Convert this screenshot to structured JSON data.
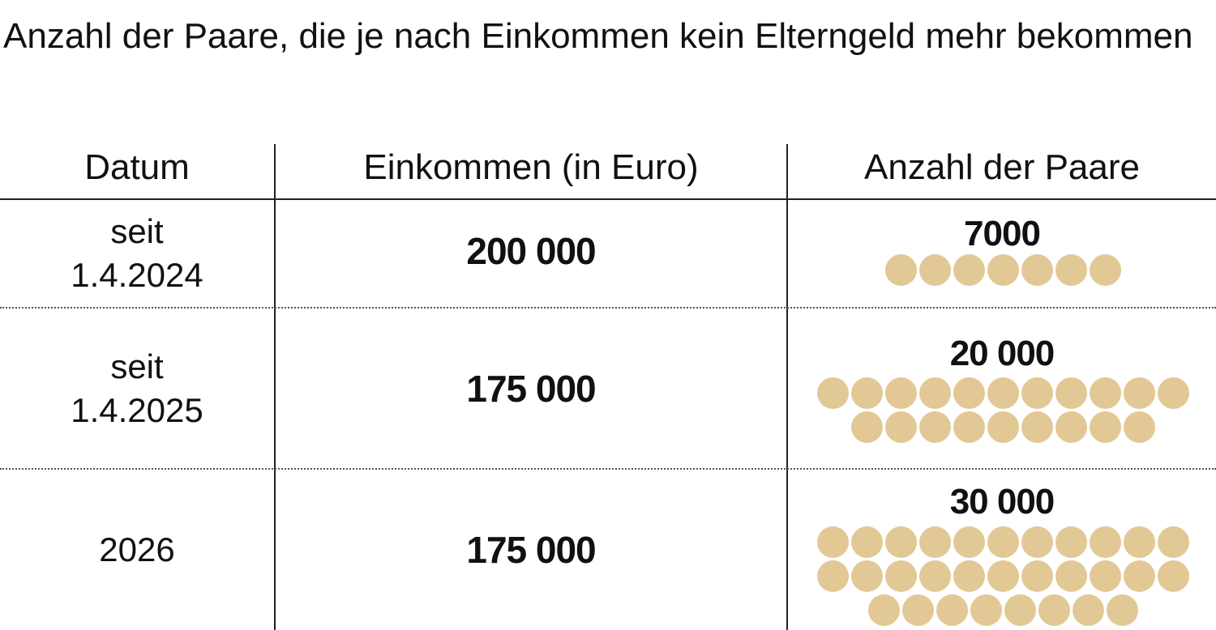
{
  "title": "Anzahl der Paare, die je nach Einkommen kein Elterngeld mehr bekommen",
  "colors": {
    "dot": "#e2c895",
    "text": "#111111",
    "lines": "#222222"
  },
  "chart_data": {
    "type": "table",
    "title": "Anzahl der Paare, die je nach Einkommen kein Elterngeld mehr bekommen",
    "columns": [
      "Datum",
      "Einkommen (in Euro)",
      "Anzahl der Paare"
    ],
    "rows": [
      {
        "datum": "seit\n1.4.2024",
        "einkommen": "200 000",
        "einkommen_value": 200000,
        "anzahl": "7000",
        "anzahl_value": 7000
      },
      {
        "datum": "seit\n1.4.2025",
        "einkommen": "175 000",
        "einkommen_value": 175000,
        "anzahl": "20 000",
        "anzahl_value": 20000
      },
      {
        "datum": "2026",
        "einkommen": "175 000",
        "einkommen_value": 175000,
        "anzahl": "30 000",
        "anzahl_value": 30000
      }
    ],
    "dot_unit": 1000
  }
}
